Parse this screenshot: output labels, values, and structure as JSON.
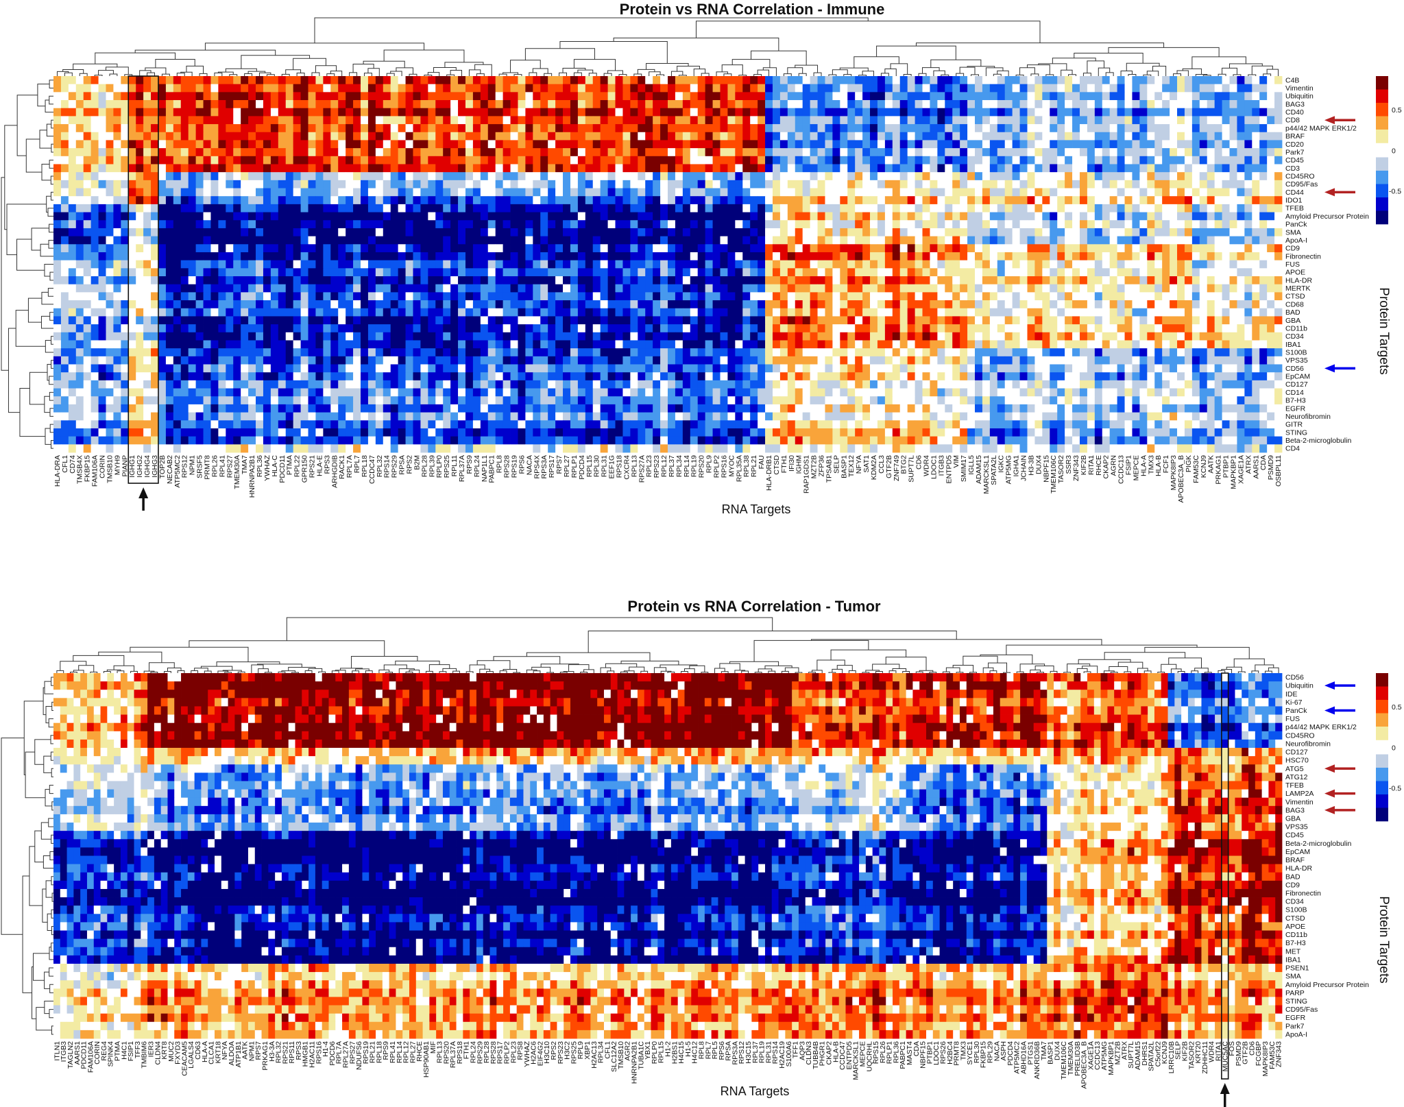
{
  "legend": {
    "colors_high_to_low": [
      "#7a0000",
      "#e00000",
      "#ff4a00",
      "#f9a43a",
      "#f3eba3",
      "#ffffff",
      "#c0cfe4",
      "#4799ee",
      "#0a55f0",
      "#0000cc",
      "#00007a"
    ],
    "ticks": [
      {
        "value": 0.5,
        "label": "0.5"
      },
      {
        "value": 0,
        "label": "0"
      },
      {
        "value": -0.5,
        "label": "-0.5"
      }
    ]
  },
  "chart_data": [
    {
      "type": "heatmap",
      "title": "Protein vs RNA Correlation - Immune",
      "xlabel": "RNA Targets",
      "ylabel": "Protein Targets",
      "rows": [
        "C4B",
        "Vimentin",
        "Ubiquitin",
        "BAG3",
        "CD40",
        "CD8",
        "p44/42 MAPK ERK1/2",
        "BRAF",
        "CD20",
        "Park7",
        "CD45",
        "CD3",
        "CD45RO",
        "CD95/Fas",
        "CD44",
        "IDO1",
        "TFEB",
        "Amyloid Precursor Protein",
        "PanCk",
        "SMA",
        "ApoA-I",
        "CD9",
        "Fibronectin",
        "FUS",
        "APOE",
        "HLA-DR",
        "MERTK",
        "CTSD",
        "CD68",
        "BAD",
        "GBA",
        "CD11b",
        "CD34",
        "IBA1",
        "S100B",
        "VPS35",
        "CD56",
        "EpCAM",
        "CD127",
        "CD14",
        "B7-H3",
        "EGFR",
        "Neurofibromin",
        "GITR",
        "STING",
        "Beta-2-microglobulin",
        "CD4"
      ],
      "columns": [
        "HLA-DRA",
        "CFL1",
        "CD74",
        "TMSB4X",
        "FKBP15",
        "FAM106A",
        "CORIN",
        "TMSB10",
        "MYH9",
        "PIANP",
        "IGHG1",
        "IGHG2",
        "IGHG4",
        "IGHG3",
        "TOP2B",
        "NECAB2",
        "ATP5MC2",
        "RPS12",
        "NPM1",
        "SRSF5",
        "PRMT8",
        "RPL26",
        "RPL41",
        "RPS27",
        "TMEM30A",
        "TMA7",
        "HNRNPA2B1",
        "RPL36",
        "YWHAZ",
        "HLA-C",
        "PDCD11",
        "PTMA",
        "RPL22",
        "GPR150",
        "RPS21",
        "HLA-E",
        "RPS3",
        "ARHGDIB",
        "RACK1",
        "RPL7A",
        "RPL7",
        "RPL18",
        "CCDC47",
        "RPL32",
        "RPS14",
        "RPS29",
        "RPSA",
        "RPS2",
        "B2M",
        "RPL28",
        "RPL39",
        "RPLP0",
        "RPS25",
        "RPL11",
        "RPL37A",
        "RPS9",
        "RPL24",
        "NAP1L1",
        "PABPC1",
        "RPL8",
        "RPS28",
        "RPS19",
        "RPS6",
        "NACA",
        "RPS4X",
        "RPS3A",
        "RPS17",
        "RPS7",
        "RPL27",
        "RPLP1",
        "PDCD4",
        "RPL15",
        "RPL30",
        "RPL31",
        "EEF1G",
        "RPS18",
        "CXCR4",
        "RPL13",
        "RPS27A",
        "RPL23",
        "RPS23",
        "RPL12",
        "RPL37",
        "RPL34",
        "RPL14",
        "RPL19",
        "RPS20",
        "RPL9",
        "RPLP2",
        "RPS16",
        "MYOC",
        "RPL35A",
        "RPL38",
        "RPL21",
        "FAU",
        "HLA-DRB1",
        "CTSD",
        "FTH1",
        "IFI30",
        "IGHM",
        "RAP1GDS1",
        "MZT2B",
        "ZFP36",
        "TPSAB1",
        "SELP",
        "BASP1",
        "TEX12",
        "NFYA",
        "SAT1",
        "KDM2A",
        "CCL3",
        "GTF2B",
        "ZNF749",
        "BTG2",
        "SUPT7L",
        "CD6",
        "WDR4",
        "LDOC1",
        "ITGB3",
        "ENTPD5",
        "VIM",
        "SMIM17",
        "IGLL5",
        "ADAM15",
        "MARCKSL1",
        "SPATA2L",
        "IGKC",
        "ATP5MG",
        "IGHA1",
        "JCHAIN",
        "H3-3B",
        "DUX4",
        "NBPF15",
        "TMEM106C",
        "TASOR2",
        "SSR3",
        "ZNF343",
        "KIF2B",
        "RITA1",
        "RHCE",
        "CKAP2",
        "AGRN",
        "CCDC13",
        "FSIP1",
        "MEPCE",
        "HLA-A",
        "TMX3",
        "HLA-B",
        "FCF1",
        "MAPK8IP3",
        "APOBEC3A_B",
        "PIGK",
        "FAM53C",
        "KCNJ9",
        "AATK",
        "PRKAG1",
        "PTBP1",
        "MAPKBP1",
        "XAGE1A",
        "ATRX",
        "AARS1",
        "CDA",
        "PSMD9",
        "OSBPL11"
      ],
      "approx_block_means": {
        "row_groups": [
          [
            "C4B",
            "CD3"
          ],
          [
            "CD45RO",
            "IDO1"
          ],
          [
            "TFEB",
            "ApoA-I"
          ],
          [
            "CD9",
            "IBA1"
          ],
          [
            "S100B",
            "Beta-2-microglobulin"
          ],
          [
            "CD4",
            "CD4"
          ]
        ],
        "col_groups": [
          [
            "HLA-DRA",
            "PIANP"
          ],
          [
            "IGHG1",
            "IGHG3"
          ],
          [
            "TOP2B",
            "FAU"
          ],
          [
            "HLA-DRB1",
            "SMIM17"
          ],
          [
            "IGLL5",
            "OSBPL11"
          ]
        ],
        "values": [
          [
            0.2,
            0.45,
            0.55,
            -0.4,
            -0.2
          ],
          [
            -0.1,
            0.5,
            -0.35,
            0.15,
            0.15
          ],
          [
            -0.55,
            -0.1,
            -0.75,
            0.1,
            -0.1
          ],
          [
            -0.25,
            -0.05,
            -0.6,
            0.35,
            0.15
          ],
          [
            -0.3,
            0.15,
            -0.45,
            0.1,
            -0.2
          ],
          [
            0.0,
            0.0,
            0.0,
            0.0,
            0.0
          ]
        ]
      },
      "color_range": [
        -0.9,
        0.9
      ],
      "highlighted_columns": [
        "IGHG1",
        "IGHG2",
        "IGHG4",
        "IGHG3"
      ],
      "row_arrows": [
        {
          "row": "CD8",
          "color": "#b22222"
        },
        {
          "row": "CD44",
          "color": "#b22222"
        },
        {
          "row": "CD56",
          "color": "#0000ee"
        }
      ]
    },
    {
      "type": "heatmap",
      "title": "Protein vs RNA Correlation - Tumor",
      "xlabel": "RNA Targets",
      "ylabel": "Protein Targets",
      "rows": [
        "CD56",
        "Ubiquitin",
        "IDE",
        "Ki-67",
        "PanCk",
        "FUS",
        "p44/42 MAPK ERK1/2",
        "CD45RO",
        "Neurofibromin",
        "CD127",
        "HSC70",
        "ATG5",
        "ATG12",
        "TFEB",
        "LAMP2A",
        "Vimentin",
        "BAG3",
        "GBA",
        "VPS35",
        "CD45",
        "Beta-2-microglobulin",
        "EpCAM",
        "BRAF",
        "HLA-DR",
        "BAD",
        "CD9",
        "Fibronectin",
        "CD34",
        "S100B",
        "CTSD",
        "APOE",
        "CD11b",
        "B7-H3",
        "MET",
        "IBA1",
        "PSEN1",
        "SMA",
        "Amyloid Precursor Protein",
        "PARP",
        "STING",
        "CD95/Fas",
        "EGFR",
        "Park7",
        "ApoA-I"
      ],
      "columns": [
        "ITLN1",
        "ITGB3",
        "TAGLN2",
        "AARS1",
        "PDCD11",
        "FAM106A",
        "CORIN",
        "REG4",
        "SPINK4",
        "PTMA",
        "H4C1",
        "FSIP1",
        "TFF3",
        "TMBIM6",
        "IER3",
        "CLDN4",
        "KRT8",
        "MUC2",
        "FXYD3",
        "CEACAM5",
        "LGALS4",
        "CD63",
        "HLA-A",
        "CLCA1",
        "KRT18",
        "NFYA",
        "ALDOA",
        "ATP1B1",
        "AATK",
        "NPM1",
        "RPS7",
        "PRKAG1",
        "H3-3A",
        "RPL32",
        "RPS21",
        "RPS11",
        "RPS3",
        "HMGB1",
        "H2AC11",
        "RPS16",
        "H1-4",
        "PDCD6",
        "RPL7A",
        "RPL27A",
        "RPS27",
        "NDUFS6",
        "RPS19",
        "RPL21",
        "RPL18",
        "RPS9",
        "RPL41",
        "RPL14",
        "RPL12",
        "RPL27",
        "RHCE",
        "HSP90AB1",
        "MIF",
        "RPL13",
        "RPS20",
        "RPL37A",
        "RPS18",
        "FTH1",
        "RPL24",
        "RPS29",
        "RPL28",
        "RPS28",
        "RPS17",
        "RPLP2",
        "RPL23",
        "RPS8",
        "YWHAZ",
        "H2AC6",
        "EIF4G2",
        "H3C10",
        "RPS2",
        "RPS23",
        "H3C2",
        "RPS25",
        "RPL9",
        "XBP1",
        "H2AC13",
        "RPL34",
        "CFL1",
        "SLC12A2",
        "TMSB10",
        "AGR2",
        "HNRNPA2B1",
        "TUBA1C",
        "YBX1",
        "RPLP0",
        "RPL15",
        "H1-2",
        "H2BS1",
        "H4C15",
        "H1-5",
        "H4C12",
        "RPL8",
        "RPL7",
        "RPL5",
        "RPS6",
        "RPSA",
        "RPS3A",
        "RPS12",
        "H3C15",
        "RPL37",
        "RPL19",
        "RPL31",
        "RPS14",
        "H2AC19",
        "S100A6",
        "TFF1",
        "AQP3",
        "CLDN3",
        "TUBB4B",
        "PHGR1",
        "CKAP2",
        "HLA-B",
        "CCDC47",
        "ENTPD5",
        "MARCKSL1",
        "MEPCE",
        "UQCRHL",
        "RPS15",
        "RPL26",
        "RPLP1",
        "RPL36",
        "PABPC1",
        "MAST4",
        "CDA",
        "NBPF15",
        "PTBP1",
        "LDOC1",
        "RPS26",
        "H2BC4",
        "PRMT8",
        "TMX3",
        "SYCE1",
        "RPL30",
        "FKBP15",
        "RPL29",
        "NACA",
        "ASPH",
        "PDCD4",
        "ATP5MC2",
        "ABHD16A",
        "PTGS1",
        "ANKRD36B",
        "TMA7",
        "BASP1",
        "DUX4",
        "TMEM106C",
        "TMEM30A",
        "PRELID3B",
        "APOBEC3A_B",
        "XAGE1A",
        "CCDC13",
        "ATP5MG",
        "MAPKBP1",
        "MZT2B",
        "ATRX",
        "SUPT7L",
        "ADAM15",
        "DHRS1",
        "SPATA2L",
        "C5orf22",
        "KCNJ9",
        "LRRC10B",
        "SELP",
        "KIF2B",
        "TASOR2",
        "KRT20",
        "ZDHHC11",
        "WDR4",
        "RITA1",
        "MUC5AC",
        "FOS",
        "PSMD9",
        "GTF2B",
        "CD6",
        "FCGBP",
        "MAPK8IP3",
        "FAM53C",
        "ZNF343"
      ],
      "approx_block_means": {
        "row_groups": [
          [
            "CD56",
            "Neurofibromin"
          ],
          [
            "CD127",
            "HSC70"
          ],
          [
            "ATG5",
            "VPS35"
          ],
          [
            "CD45",
            "IBA1"
          ],
          [
            "PSEN1",
            "ApoA-I"
          ]
        ],
        "col_groups": [
          [
            "ITLN1",
            "TMBIM6"
          ],
          [
            "IER3",
            "S100A6"
          ],
          [
            "TFF1",
            "PABPC1"
          ],
          [
            "MAST4",
            "TMA7"
          ],
          [
            "BASP1",
            "KCNJ9"
          ],
          [
            "LRRC10B",
            "ZNF343"
          ]
        ],
        "values": [
          [
            0.3,
            0.75,
            0.5,
            0.6,
            0.4,
            -0.4
          ],
          [
            0.1,
            0.2,
            0.2,
            0.15,
            0.25,
            0.3
          ],
          [
            -0.1,
            -0.35,
            -0.15,
            -0.45,
            0.15,
            0.55
          ],
          [
            -0.5,
            -0.75,
            -0.5,
            -0.7,
            0.2,
            0.6
          ],
          [
            0.15,
            0.3,
            0.4,
            0.35,
            0.45,
            0.3
          ]
        ]
      },
      "color_range": [
        -0.9,
        0.9
      ],
      "highlighted_columns": [
        "MUC5AC"
      ],
      "row_arrows": [
        {
          "row": "Ubiquitin",
          "color": "#0000ee"
        },
        {
          "row": "PanCk",
          "color": "#0000ee"
        },
        {
          "row": "ATG5",
          "color": "#b22222"
        },
        {
          "row": "LAMP2A",
          "color": "#b22222"
        },
        {
          "row": "BAG3",
          "color": "#b22222"
        }
      ]
    }
  ]
}
